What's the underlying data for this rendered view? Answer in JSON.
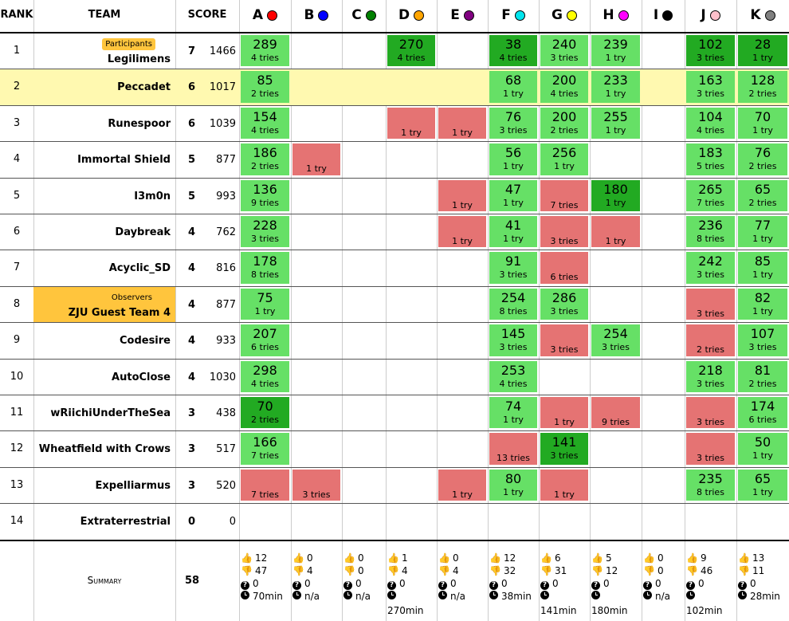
{
  "headers": {
    "rank": "RANK",
    "team": "TEAM",
    "score": "SCORE",
    "summary": "Summary"
  },
  "colors": {
    "solved": "#66e066",
    "first_solved": "#22aa22",
    "failed": "#e57373",
    "highlight": "#fff9b0",
    "observer": "#ffc53d"
  },
  "problems": [
    {
      "letter": "A",
      "color": "#ff0000"
    },
    {
      "letter": "B",
      "color": "#0000ff"
    },
    {
      "letter": "C",
      "color": "#008000"
    },
    {
      "letter": "D",
      "color": "#ffa500"
    },
    {
      "letter": "E",
      "color": "#800080"
    },
    {
      "letter": "F",
      "color": "#00e5ee"
    },
    {
      "letter": "G",
      "color": "#ffff00"
    },
    {
      "letter": "H",
      "color": "#ff00ff"
    },
    {
      "letter": "I",
      "color": "#000000"
    },
    {
      "letter": "J",
      "color": "#ffc0cb"
    },
    {
      "letter": "K",
      "color": "#808080"
    }
  ],
  "teams": [
    {
      "rank": "1",
      "name": "Legilimens",
      "badge": "Participants",
      "solved": "7",
      "score": "1466",
      "results": [
        {
          "s": "solved",
          "time": "289",
          "tries": "4 tries"
        },
        null,
        null,
        {
          "s": "first",
          "time": "270",
          "tries": "4 tries"
        },
        null,
        {
          "s": "first",
          "time": "38",
          "tries": "4 tries"
        },
        {
          "s": "solved",
          "time": "240",
          "tries": "3 tries"
        },
        {
          "s": "solved",
          "time": "239",
          "tries": "1 try"
        },
        null,
        {
          "s": "first",
          "time": "102",
          "tries": "3 tries"
        },
        {
          "s": "first",
          "time": "28",
          "tries": "1 try"
        }
      ]
    },
    {
      "rank": "2",
      "name": "Peccadet",
      "solved": "6",
      "score": "1017",
      "highlight": true,
      "results": [
        {
          "s": "solved",
          "time": "85",
          "tries": "2 tries"
        },
        null,
        null,
        null,
        null,
        {
          "s": "solved",
          "time": "68",
          "tries": "1 try"
        },
        {
          "s": "solved",
          "time": "200",
          "tries": "4 tries"
        },
        {
          "s": "solved",
          "time": "233",
          "tries": "1 try"
        },
        null,
        {
          "s": "solved",
          "time": "163",
          "tries": "3 tries"
        },
        {
          "s": "solved",
          "time": "128",
          "tries": "2 tries"
        }
      ]
    },
    {
      "rank": "3",
      "name": "Runespoor",
      "solved": "6",
      "score": "1039",
      "results": [
        {
          "s": "solved",
          "time": "154",
          "tries": "4 tries"
        },
        null,
        null,
        {
          "s": "failed",
          "tries": "1 try"
        },
        {
          "s": "failed",
          "tries": "1 try"
        },
        {
          "s": "solved",
          "time": "76",
          "tries": "3 tries"
        },
        {
          "s": "solved",
          "time": "200",
          "tries": "2 tries"
        },
        {
          "s": "solved",
          "time": "255",
          "tries": "1 try"
        },
        null,
        {
          "s": "solved",
          "time": "104",
          "tries": "4 tries"
        },
        {
          "s": "solved",
          "time": "70",
          "tries": "1 try"
        }
      ]
    },
    {
      "rank": "4",
      "name": "Immortal Shield",
      "solved": "5",
      "score": "877",
      "results": [
        {
          "s": "solved",
          "time": "186",
          "tries": "2 tries"
        },
        {
          "s": "failed",
          "tries": "1 try"
        },
        null,
        null,
        null,
        {
          "s": "solved",
          "time": "56",
          "tries": "1 try"
        },
        {
          "s": "solved",
          "time": "256",
          "tries": "1 try"
        },
        null,
        null,
        {
          "s": "solved",
          "time": "183",
          "tries": "5 tries"
        },
        {
          "s": "solved",
          "time": "76",
          "tries": "2 tries"
        }
      ]
    },
    {
      "rank": "5",
      "name": "I3m0n",
      "solved": "5",
      "score": "993",
      "results": [
        {
          "s": "solved",
          "time": "136",
          "tries": "9 tries"
        },
        null,
        null,
        null,
        {
          "s": "failed",
          "tries": "1 try"
        },
        {
          "s": "solved",
          "time": "47",
          "tries": "1 try"
        },
        {
          "s": "failed",
          "tries": "7 tries"
        },
        {
          "s": "first",
          "time": "180",
          "tries": "1 try"
        },
        null,
        {
          "s": "solved",
          "time": "265",
          "tries": "7 tries"
        },
        {
          "s": "solved",
          "time": "65",
          "tries": "2 tries"
        }
      ]
    },
    {
      "rank": "6",
      "name": "Daybreak",
      "solved": "4",
      "score": "762",
      "results": [
        {
          "s": "solved",
          "time": "228",
          "tries": "3 tries"
        },
        null,
        null,
        null,
        {
          "s": "failed",
          "tries": "1 try"
        },
        {
          "s": "solved",
          "time": "41",
          "tries": "1 try"
        },
        {
          "s": "failed",
          "tries": "3 tries"
        },
        {
          "s": "failed",
          "tries": "1 try"
        },
        null,
        {
          "s": "solved",
          "time": "236",
          "tries": "8 tries"
        },
        {
          "s": "solved",
          "time": "77",
          "tries": "1 try"
        }
      ]
    },
    {
      "rank": "7",
      "name": "Acyclic_SD",
      "solved": "4",
      "score": "816",
      "results": [
        {
          "s": "solved",
          "time": "178",
          "tries": "8 tries"
        },
        null,
        null,
        null,
        null,
        {
          "s": "solved",
          "time": "91",
          "tries": "3 tries"
        },
        {
          "s": "failed",
          "tries": "6 tries"
        },
        null,
        null,
        {
          "s": "solved",
          "time": "242",
          "tries": "3 tries"
        },
        {
          "s": "solved",
          "time": "85",
          "tries": "1 try"
        }
      ]
    },
    {
      "rank": "8",
      "name": "ZJU Guest Team 4",
      "badge": "Observers",
      "observer": true,
      "solved": "4",
      "score": "877",
      "results": [
        {
          "s": "solved",
          "time": "75",
          "tries": "1 try"
        },
        null,
        null,
        null,
        null,
        {
          "s": "solved",
          "time": "254",
          "tries": "8 tries"
        },
        {
          "s": "solved",
          "time": "286",
          "tries": "3 tries"
        },
        null,
        null,
        {
          "s": "failed",
          "tries": "3 tries"
        },
        {
          "s": "solved",
          "time": "82",
          "tries": "1 try"
        }
      ]
    },
    {
      "rank": "9",
      "name": "Codesire",
      "solved": "4",
      "score": "933",
      "results": [
        {
          "s": "solved",
          "time": "207",
          "tries": "6 tries"
        },
        null,
        null,
        null,
        null,
        {
          "s": "solved",
          "time": "145",
          "tries": "3 tries"
        },
        {
          "s": "failed",
          "tries": "3 tries"
        },
        {
          "s": "solved",
          "time": "254",
          "tries": "3 tries"
        },
        null,
        {
          "s": "failed",
          "tries": "2 tries"
        },
        {
          "s": "solved",
          "time": "107",
          "tries": "3 tries"
        }
      ]
    },
    {
      "rank": "10",
      "name": "AutoClose",
      "solved": "4",
      "score": "1030",
      "results": [
        {
          "s": "solved",
          "time": "298",
          "tries": "4 tries"
        },
        null,
        null,
        null,
        null,
        {
          "s": "solved",
          "time": "253",
          "tries": "4 tries"
        },
        null,
        null,
        null,
        {
          "s": "solved",
          "time": "218",
          "tries": "3 tries"
        },
        {
          "s": "solved",
          "time": "81",
          "tries": "2 tries"
        }
      ]
    },
    {
      "rank": "11",
      "name": "wRiichiUnderTheSea",
      "solved": "3",
      "score": "438",
      "results": [
        {
          "s": "first",
          "time": "70",
          "tries": "2 tries"
        },
        null,
        null,
        null,
        null,
        {
          "s": "solved",
          "time": "74",
          "tries": "1 try"
        },
        {
          "s": "failed",
          "tries": "1 try"
        },
        {
          "s": "failed",
          "tries": "9 tries"
        },
        null,
        {
          "s": "failed",
          "tries": "3 tries"
        },
        {
          "s": "solved",
          "time": "174",
          "tries": "6 tries"
        }
      ]
    },
    {
      "rank": "12",
      "name": "Wheatfield with Crows",
      "solved": "3",
      "score": "517",
      "results": [
        {
          "s": "solved",
          "time": "166",
          "tries": "7 tries"
        },
        null,
        null,
        null,
        null,
        {
          "s": "failed",
          "tries": "13 tries"
        },
        {
          "s": "first",
          "time": "141",
          "tries": "3 tries"
        },
        null,
        null,
        {
          "s": "failed",
          "tries": "3 tries"
        },
        {
          "s": "solved",
          "time": "50",
          "tries": "1 try"
        }
      ]
    },
    {
      "rank": "13",
      "name": "Expelliarmus",
      "solved": "3",
      "score": "520",
      "results": [
        {
          "s": "failed",
          "tries": "7 tries"
        },
        {
          "s": "failed",
          "tries": "3 tries"
        },
        null,
        null,
        {
          "s": "failed",
          "tries": "1 try"
        },
        {
          "s": "solved",
          "time": "80",
          "tries": "1 try"
        },
        {
          "s": "failed",
          "tries": "1 try"
        },
        null,
        null,
        {
          "s": "solved",
          "time": "235",
          "tries": "8 tries"
        },
        {
          "s": "solved",
          "time": "65",
          "tries": "1 try"
        }
      ]
    },
    {
      "rank": "14",
      "name": "Extraterrestrial",
      "solved": "0",
      "score": "0",
      "results": [
        null,
        null,
        null,
        null,
        null,
        null,
        null,
        null,
        null,
        null,
        null
      ]
    }
  ],
  "summary": {
    "total_solved": "58",
    "problems": [
      {
        "up": "12",
        "down": "47",
        "pending": "0",
        "first": "70min"
      },
      {
        "up": "0",
        "down": "4",
        "pending": "0",
        "first": "n/a"
      },
      {
        "up": "0",
        "down": "0",
        "pending": "0",
        "first": "n/a"
      },
      {
        "up": "1",
        "down": "4",
        "pending": "0",
        "first": "270min"
      },
      {
        "up": "0",
        "down": "4",
        "pending": "0",
        "first": "n/a"
      },
      {
        "up": "12",
        "down": "32",
        "pending": "0",
        "first": "38min"
      },
      {
        "up": "6",
        "down": "31",
        "pending": "0",
        "first": "141min"
      },
      {
        "up": "5",
        "down": "12",
        "pending": "0",
        "first": "180min"
      },
      {
        "up": "0",
        "down": "0",
        "pending": "0",
        "first": "n/a"
      },
      {
        "up": "9",
        "down": "46",
        "pending": "0",
        "first": "102min"
      },
      {
        "up": "13",
        "down": "11",
        "pending": "0",
        "first": "28min"
      }
    ]
  }
}
